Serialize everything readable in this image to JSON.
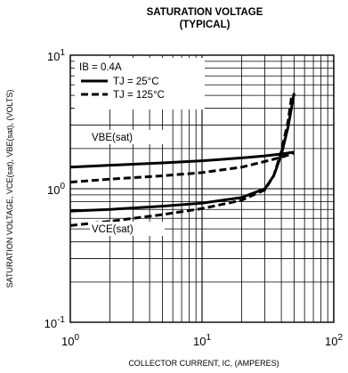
{
  "chart_data": {
    "type": "line",
    "title": "SATURATION VOLTAGE",
    "subtitle": "(TYPICAL)",
    "xlabel": "COLLECTOR CURRENT, IC, (AMPERES)",
    "ylabel": "SATURATION VOLTAGE, VCE(sat), VBE(sat), (VOLTS)",
    "xscale": "log",
    "yscale": "log",
    "xlim": [
      1,
      100
    ],
    "ylim": [
      0.1,
      10
    ],
    "x_ticks": [
      {
        "base": "10",
        "exp": "0"
      },
      {
        "base": "10",
        "exp": "1"
      },
      {
        "base": "10",
        "exp": "2"
      }
    ],
    "y_ticks": [
      {
        "base": "10",
        "exp": "-1"
      },
      {
        "base": "10",
        "exp": "0"
      },
      {
        "base": "10",
        "exp": "1"
      }
    ],
    "grid": true,
    "legend": {
      "position": "top-left",
      "condition": "IB = 0.4A",
      "entries": [
        {
          "label": "TJ = 25°C",
          "style": "solid"
        },
        {
          "label": "TJ = 125°C",
          "style": "dashed"
        }
      ]
    },
    "annotations": [
      "VBE(sat)",
      "VCE(sat)"
    ],
    "series": [
      {
        "name": "VBE(sat) TJ = 25°C",
        "style": "solid",
        "x": [
          1,
          2,
          5,
          10,
          20,
          30,
          40,
          50
        ],
        "y": [
          1.45,
          1.5,
          1.56,
          1.62,
          1.7,
          1.76,
          1.82,
          1.88
        ]
      },
      {
        "name": "VBE(sat) TJ = 125°C",
        "style": "dashed",
        "x": [
          1,
          2,
          5,
          10,
          20,
          30,
          40,
          50
        ],
        "y": [
          1.12,
          1.18,
          1.25,
          1.32,
          1.45,
          1.6,
          1.72,
          1.85
        ]
      },
      {
        "name": "VCE(sat) TJ = 25°C",
        "style": "solid",
        "x": [
          1,
          2,
          5,
          10,
          20,
          30,
          35,
          40,
          45,
          50
        ],
        "y": [
          0.68,
          0.7,
          0.74,
          0.78,
          0.86,
          1.0,
          1.25,
          1.8,
          2.9,
          5.2
        ]
      },
      {
        "name": "VCE(sat) TJ = 125°C",
        "style": "dashed",
        "x": [
          1,
          2,
          5,
          10,
          20,
          30,
          35,
          40,
          45,
          48
        ],
        "y": [
          0.53,
          0.57,
          0.64,
          0.71,
          0.82,
          0.98,
          1.25,
          1.9,
          3.2,
          5.0
        ]
      }
    ]
  }
}
